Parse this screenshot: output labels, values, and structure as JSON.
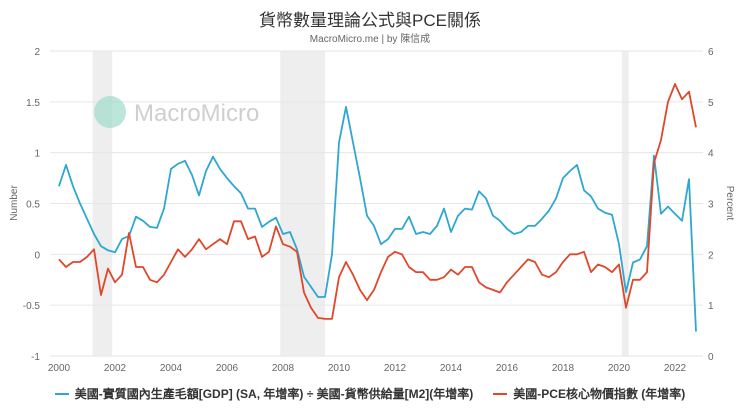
{
  "chart_data": {
    "type": "line",
    "title": "貨幣數量理論公式與PCE關係",
    "subtitle": "MacroMicro.me | by 陳信成",
    "watermark": "MacroMicro",
    "ylabel_left": "Number",
    "ylabel_right": "Percent",
    "ylim_left": [
      -1,
      2
    ],
    "ylim_right": [
      0,
      6
    ],
    "xlim": [
      1999.7,
      2023.0
    ],
    "left_ticks": [
      "-1",
      "-0.5",
      "0",
      "0.5",
      "1",
      "1.5",
      "2"
    ],
    "right_ticks": [
      "0",
      "1",
      "2",
      "3",
      "4",
      "5",
      "6"
    ],
    "x_ticks": [
      "2000",
      "2002",
      "2004",
      "2006",
      "2008",
      "2010",
      "2012",
      "2014",
      "2016",
      "2018",
      "2020",
      "2022"
    ],
    "recessions": [
      [
        2001.2,
        2001.9
      ],
      [
        2007.9,
        2009.5
      ],
      [
        2020.1,
        2020.35
      ]
    ],
    "series": [
      {
        "name": "美國-實質國內生產毛額[GDP] (SA, 年增率) ÷ 美國-貨幣供給量[M2](年增率)",
        "axis": "left",
        "color": "#2ea7d1",
        "start": 2000.0,
        "step": 0.25,
        "values": [
          0.67,
          0.88,
          0.67,
          0.5,
          0.35,
          0.2,
          0.08,
          0.04,
          0.02,
          0.15,
          0.18,
          0.37,
          0.33,
          0.27,
          0.26,
          0.45,
          0.84,
          0.89,
          0.92,
          0.78,
          0.58,
          0.82,
          0.96,
          0.84,
          0.75,
          0.67,
          0.6,
          0.45,
          0.45,
          0.27,
          0.32,
          0.36,
          0.2,
          0.22,
          0.05,
          -0.22,
          -0.32,
          -0.42,
          -0.42,
          0.0,
          1.1,
          1.45,
          1.1,
          0.75,
          0.38,
          0.28,
          0.1,
          0.15,
          0.25,
          0.25,
          0.37,
          0.2,
          0.22,
          0.2,
          0.28,
          0.45,
          0.22,
          0.38,
          0.45,
          0.44,
          0.62,
          0.55,
          0.38,
          0.33,
          0.25,
          0.2,
          0.22,
          0.28,
          0.28,
          0.35,
          0.43,
          0.55,
          0.75,
          0.82,
          0.88,
          0.63,
          0.57,
          0.45,
          0.41,
          0.39,
          0.1,
          -0.37,
          -0.08,
          -0.05,
          0.08,
          0.97,
          0.4,
          0.47,
          0.4,
          0.33,
          0.74,
          -0.76
        ]
      },
      {
        "name": "美國-PCE核心物價指數 (年增率)",
        "axis": "right",
        "color": "#e0472a",
        "start": 2000.0,
        "step": 0.25,
        "values": [
          1.9,
          1.75,
          1.85,
          1.85,
          1.95,
          2.1,
          1.2,
          1.72,
          1.45,
          1.6,
          2.42,
          1.75,
          1.75,
          1.5,
          1.45,
          1.6,
          1.85,
          2.1,
          1.95,
          2.1,
          2.3,
          2.1,
          2.2,
          2.3,
          2.2,
          2.65,
          2.65,
          2.3,
          2.35,
          1.95,
          2.05,
          2.55,
          2.2,
          2.15,
          2.05,
          1.25,
          0.95,
          0.75,
          0.73,
          0.73,
          1.55,
          1.85,
          1.6,
          1.3,
          1.1,
          1.3,
          1.65,
          1.95,
          2.05,
          2.0,
          1.75,
          1.65,
          1.65,
          1.5,
          1.5,
          1.55,
          1.7,
          1.6,
          1.75,
          1.75,
          1.45,
          1.35,
          1.3,
          1.25,
          1.45,
          1.6,
          1.75,
          1.9,
          1.85,
          1.6,
          1.55,
          1.65,
          1.85,
          2.0,
          2.0,
          2.05,
          1.65,
          1.8,
          1.75,
          1.65,
          1.8,
          0.95,
          1.5,
          1.5,
          1.65,
          3.8,
          4.25,
          5.0,
          5.35,
          5.05,
          5.2,
          4.5
        ]
      }
    ]
  }
}
